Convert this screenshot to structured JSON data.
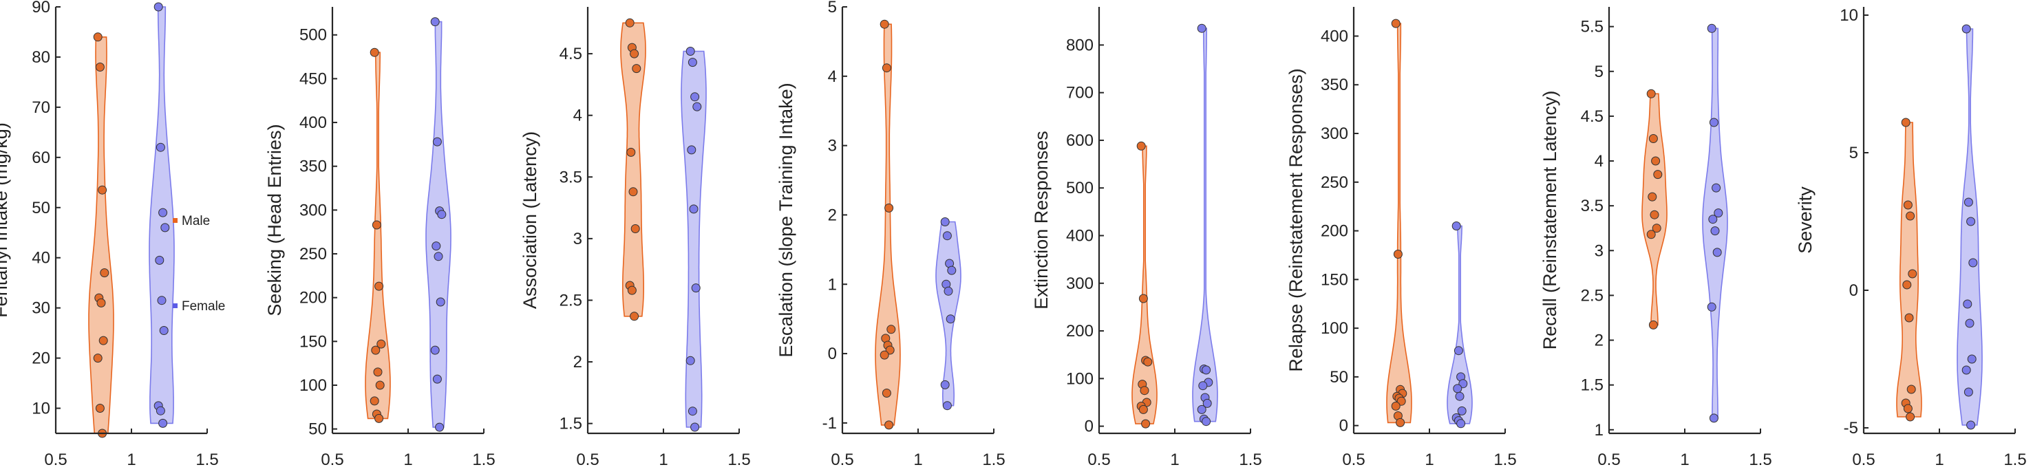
{
  "legend": {
    "items": [
      {
        "label": "Male",
        "color": "#E8651F"
      },
      {
        "label": "Female",
        "color": "#5B5BE6"
      }
    ]
  },
  "colors": {
    "male_fill": "#F6C4A6",
    "male_stroke": "#E8651F",
    "male_point": "#E06B2A",
    "female_fill": "#C8C8F6",
    "female_stroke": "#7B7BEB",
    "female_point": "#7C7CE8",
    "axis": "#262626"
  },
  "chart_data": [
    {
      "type": "violin",
      "ylabel": "Fentanyl Intake (mg/kg)",
      "xticks": [
        "0.5",
        "1",
        "1.5"
      ],
      "xlim": [
        0.5,
        1.5
      ],
      "yticks": [
        "10",
        "20",
        "30",
        "40",
        "50",
        "60",
        "70",
        "80",
        "90"
      ],
      "ylim": [
        5,
        90
      ],
      "series": [
        {
          "name": "Male",
          "x": 0.8,
          "values": [
            84,
            78,
            53.5,
            37,
            32,
            31,
            23.5,
            20,
            10,
            5
          ]
        },
        {
          "name": "Female",
          "x": 1.2,
          "values": [
            90,
            62,
            49,
            46,
            39.5,
            31.5,
            25.5,
            10.5,
            9.5,
            7
          ]
        }
      ]
    },
    {
      "type": "violin",
      "ylabel": "Seeking (Head Entries)",
      "xticks": [
        "0.5",
        "1",
        "1.5"
      ],
      "xlim": [
        0.5,
        1.5
      ],
      "yticks": [
        "50",
        "100",
        "150",
        "200",
        "250",
        "300",
        "350",
        "400",
        "450",
        "500"
      ],
      "ylim": [
        45,
        532
      ],
      "series": [
        {
          "name": "Male",
          "x": 0.8,
          "values": [
            480,
            283,
            213,
            147,
            140,
            115,
            100,
            82,
            67,
            62
          ]
        },
        {
          "name": "Female",
          "x": 1.2,
          "values": [
            515,
            378,
            299,
            295,
            259,
            247,
            195,
            140,
            107,
            52
          ]
        }
      ]
    },
    {
      "type": "violin",
      "ylabel": "Association (Latency)",
      "xticks": [
        "0.5",
        "1",
        "1.5"
      ],
      "xlim": [
        0.5,
        1.5
      ],
      "yticks": [
        "1.5",
        "2",
        "2.5",
        "3",
        "3.5",
        "4",
        "4.5"
      ],
      "ylim": [
        1.42,
        4.88
      ],
      "series": [
        {
          "name": "Male",
          "x": 0.8,
          "values": [
            4.75,
            4.55,
            4.5,
            4.38,
            3.7,
            3.38,
            3.08,
            2.62,
            2.58,
            2.37
          ]
        },
        {
          "name": "Female",
          "x": 1.2,
          "values": [
            4.52,
            4.43,
            4.15,
            4.07,
            3.72,
            3.24,
            2.6,
            2.01,
            1.6,
            1.47
          ]
        }
      ]
    },
    {
      "type": "violin",
      "ylabel": "Escalation (slope Training Intake)",
      "xticks": [
        "0.5",
        "1",
        "1.5"
      ],
      "xlim": [
        0.5,
        1.5
      ],
      "yticks": [
        "-1",
        "0",
        "1",
        "2",
        "3",
        "4",
        "5"
      ],
      "ylim": [
        -1.15,
        5
      ],
      "series": [
        {
          "name": "Male",
          "x": 0.8,
          "values": [
            4.75,
            4.12,
            2.1,
            0.35,
            0.22,
            0.12,
            0.05,
            -0.02,
            -0.57,
            -1.03
          ]
        },
        {
          "name": "Female",
          "x": 1.2,
          "values": [
            1.9,
            1.7,
            1.3,
            1.2,
            1.0,
            0.9,
            0.5,
            -0.45,
            -0.75
          ]
        }
      ]
    },
    {
      "type": "violin",
      "ylabel": "Extinction Responses",
      "xticks": [
        "0.5",
        "1",
        "1.5"
      ],
      "xlim": [
        0.5,
        1.5
      ],
      "yticks": [
        "0",
        "100",
        "200",
        "300",
        "400",
        "500",
        "600",
        "700",
        "800"
      ],
      "ylim": [
        -15,
        880
      ],
      "series": [
        {
          "name": "Male",
          "x": 0.8,
          "values": [
            588,
            268,
            138,
            135,
            88,
            75,
            50,
            42,
            35,
            5
          ]
        },
        {
          "name": "Female",
          "x": 1.2,
          "values": [
            835,
            120,
            118,
            92,
            85,
            60,
            48,
            35,
            15,
            10
          ]
        }
      ]
    },
    {
      "type": "violin",
      "ylabel": "Relapse (Reinstatement Responses)",
      "xticks": [
        "0.5",
        "1",
        "1.5"
      ],
      "xlim": [
        0.5,
        1.5
      ],
      "yticks": [
        "0",
        "50",
        "100",
        "150",
        "200",
        "250",
        "300",
        "350",
        "400"
      ],
      "ylim": [
        -8,
        430
      ],
      "series": [
        {
          "name": "Male",
          "x": 0.8,
          "values": [
            413,
            176,
            37,
            33,
            30,
            28,
            25,
            20,
            10,
            3
          ]
        },
        {
          "name": "Female",
          "x": 1.2,
          "values": [
            205,
            77,
            50,
            43,
            38,
            30,
            15,
            8,
            5,
            2
          ]
        }
      ]
    },
    {
      "type": "violin",
      "ylabel": "Recall (Reinstatement Latency)",
      "xticks": [
        "0.5",
        "1",
        "1.5"
      ],
      "xlim": [
        0.5,
        1.5
      ],
      "yticks": [
        "1",
        "1.5",
        "2",
        "2.5",
        "3",
        "3.5",
        "4",
        "4.5",
        "5",
        "5.5"
      ],
      "ylim": [
        0.96,
        5.72
      ],
      "series": [
        {
          "name": "Male",
          "x": 0.8,
          "values": [
            4.75,
            4.25,
            4.0,
            3.85,
            3.6,
            3.4,
            3.25,
            3.18,
            2.17
          ]
        },
        {
          "name": "Female",
          "x": 1.2,
          "values": [
            5.48,
            4.43,
            3.7,
            3.42,
            3.35,
            3.22,
            2.98,
            2.37,
            1.13
          ]
        }
      ]
    },
    {
      "type": "violin",
      "ylabel": "Severity",
      "xticks": [
        "0.5",
        "1",
        "1.5"
      ],
      "xlim": [
        0.5,
        1.5
      ],
      "yticks": [
        "-5",
        "0",
        "5",
        "10"
      ],
      "ylim": [
        -5.2,
        10.3
      ],
      "series": [
        {
          "name": "Male",
          "x": 0.8,
          "values": [
            6.1,
            3.1,
            2.7,
            0.6,
            0.2,
            -1.0,
            -3.6,
            -4.1,
            -4.3,
            -4.6
          ]
        },
        {
          "name": "Female",
          "x": 1.2,
          "values": [
            9.5,
            3.2,
            2.5,
            1.0,
            -0.5,
            -1.2,
            -2.5,
            -2.9,
            -3.7,
            -4.9
          ]
        }
      ]
    }
  ]
}
